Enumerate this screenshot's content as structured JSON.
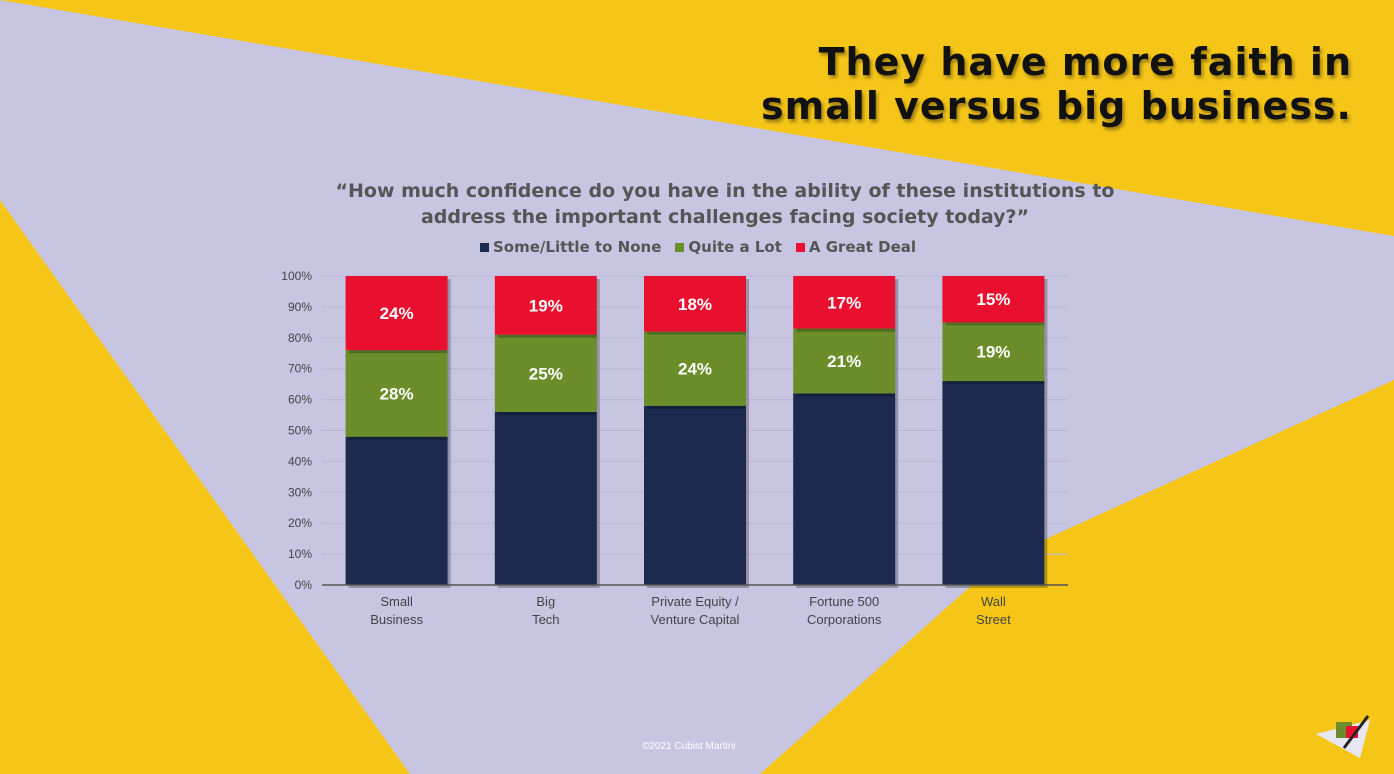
{
  "slide": {
    "headline_line1": "They have more faith in",
    "headline_line2": "small versus big business.",
    "copyright": "©2021 Cubist Martini"
  },
  "colors": {
    "background_yellow": "#f5c518",
    "background_lavender": "#c8c5e2",
    "series_none": "#1b2a4e",
    "series_quite": "#6b8e2a",
    "series_great": "#e8102e"
  },
  "chart_data": {
    "type": "bar",
    "stacked": true,
    "title_line1": "“How much confidence do you have in the ability of these institutions to",
    "title_line2": "address the important challenges facing society today?”",
    "categories": [
      [
        "Small",
        "Business"
      ],
      [
        "Big",
        "Tech"
      ],
      [
        "Private Equity /",
        "Venture Capital"
      ],
      [
        "Fortune 500",
        "Corporations"
      ],
      [
        "Wall",
        "Street"
      ]
    ],
    "series": [
      {
        "name": "Some/Little to None",
        "color": "#1b2a4e",
        "values": [
          48,
          56,
          58,
          62,
          66
        ],
        "labels": [
          "",
          "",
          "",
          "",
          ""
        ]
      },
      {
        "name": "Quite a Lot",
        "color": "#6b8e2a",
        "values": [
          28,
          25,
          24,
          21,
          19
        ],
        "labels": [
          "28%",
          "25%",
          "24%",
          "21%",
          "19%"
        ]
      },
      {
        "name": "A Great Deal",
        "color": "#e8102e",
        "values": [
          24,
          19,
          18,
          17,
          15
        ],
        "labels": [
          "24%",
          "19%",
          "18%",
          "17%",
          "15%"
        ]
      }
    ],
    "ylim": [
      0,
      100
    ],
    "yticks": [
      "0%",
      "10%",
      "20%",
      "30%",
      "40%",
      "50%",
      "60%",
      "70%",
      "80%",
      "90%",
      "100%"
    ],
    "grid": true,
    "legend": "top"
  }
}
